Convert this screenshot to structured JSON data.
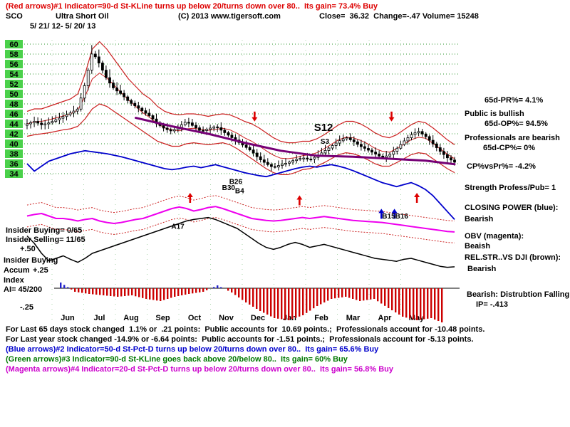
{
  "header": {
    "line1": "(Red arrows)#1 Indicator=90-d St-KLine turns up below 20/turns down over 80..  Its gain= 73.4% Buy",
    "symbol": "SCO",
    "name": "Ultra Short Oil",
    "copyright": "(C) 2013 www.tigersoft.com",
    "quote": "Close=  36.32  Change=-.47 Volume= 15248",
    "date_range": "5/ 21/ 12- 5/ 20/ 13"
  },
  "right_panel": {
    "pr": "65d-PR%= 4.1%",
    "public": "Public is bullish",
    "op": "65d-OP%= 94.5%",
    "professionals": "Professionals are bearish",
    "cp": "65d-CP%= 0%",
    "cpvspr": "CP%vsPr%= -4.2%",
    "strength": "Strength Profess/Pub= 1",
    "closing_power_title": "CLOSING POWER (blue):",
    "closing_power_status": "Bearish",
    "obv_title": "OBV (magenta):",
    "obv_status": "Beaish",
    "relstr_title": "REL.STR..VS DJI (brown):",
    "relstr_status": "Bearish",
    "verdict": "Bearish: Distrubtion Falling",
    "ip": "IP= -.413"
  },
  "left_panel": {
    "insider_buying": "Insider Buying= 0/65",
    "insider_selling": "Insider Selling= 11/65",
    "plus_50": "+.50",
    "accum_title1": "Insider Buying",
    "accum_title2": "Accum",
    "plus_25": "+.25",
    "accum_title3": "Index",
    "ai": "AI= 45/200",
    "minus_25": "-.25"
  },
  "footer": {
    "lines": [
      {
        "text": "For Last 65 days stock changed  1.1% or  .21 points:  Public accounts for  10.69 points.;  Professionals account for -10.48 points.",
        "color": "#000000"
      },
      {
        "text": "For Last year stock changed -14.9% or -6.64 points:  Public accounts for -1.51 points.;  Professionals account for -5.13 points.",
        "color": "#000000"
      },
      {
        "text": "(Blue arrows)#2 Indicator=50-d St-Pct-D turns up below 20/turns down over 80..  Its gain= 65.6% Buy",
        "color": "#0000cc"
      },
      {
        "text": "(Green arrows)#3 Indicator=90-d St-KLine goes back above 20/below 80..  Its gain= 60% Buy",
        "color": "#007700"
      },
      {
        "text": "(Magenta arrows)#4 Indicator=20-d St-Pct-D turns up below 20/turns down over 80..  Its gain= 56.8% Buy",
        "color": "#cc00cc"
      }
    ]
  },
  "chart_data": {
    "type": "candlestick",
    "symbol": "SCO",
    "title": "Ultra Short Oil",
    "date_range": "5/ 21/ 12- 5/ 20/ 13",
    "close": 36.32,
    "change": -0.47,
    "volume": 15248,
    "y_ticks": [
      60,
      58,
      56,
      54,
      52,
      50,
      48,
      46,
      44,
      42,
      40,
      38,
      36,
      34
    ],
    "months": [
      "Jun",
      "Jul",
      "Aug",
      "Sep",
      "Oct",
      "Nov",
      "Dec",
      "Jan",
      "Feb",
      "Mar",
      "Apr",
      "May"
    ],
    "price_axis_range": [
      34,
      60
    ],
    "obv_band_offset": 2.2,
    "colors": {
      "grid": "#118811",
      "tick_bg": "#4ad14a",
      "candle": "#000000",
      "bands": "#cc2222",
      "ma200": "#750075",
      "closing_power": "#0000cc",
      "obv": "#ee00ee",
      "rel_str": "#000000",
      "hist_neg": "#cc0000",
      "hist_pos": "#2222cc"
    },
    "series": {
      "close": [
        44,
        44.5,
        43.8,
        44.2,
        44.8,
        45.5,
        46.2,
        47,
        52,
        58.5,
        56,
        53,
        51,
        50,
        48.5,
        47.5,
        46.5,
        45.5,
        44,
        43,
        42.5,
        43.5,
        44.5,
        43.5,
        42.5,
        43,
        43.5,
        42.5,
        41.5,
        40.5,
        39.5,
        38.5,
        37,
        36,
        35.2,
        35.8,
        36.2,
        36.8,
        37.2,
        36.8,
        37.5,
        38.5,
        39.5,
        40.5,
        41.3,
        40.5,
        39.5,
        38.8,
        38,
        37.2,
        37.8,
        39,
        40.5,
        41.8,
        42.5,
        41.5,
        40,
        38.5,
        37.2,
        36.3
      ],
      "band_upper": [
        46.5,
        47,
        47,
        47.5,
        48,
        48.5,
        49,
        50,
        54,
        59,
        60.5,
        59,
        57,
        55,
        53,
        51.5,
        50,
        49,
        47.5,
        46.5,
        46,
        45.8,
        46,
        46,
        45.8,
        45.5,
        45.8,
        46,
        45.8,
        45.2,
        44.5,
        44,
        43.2,
        42.2,
        41.2,
        40.5,
        40.2,
        40.2,
        40.5,
        40.5,
        41,
        41.8,
        42.8,
        43.8,
        44.5,
        44.5,
        44,
        43.2,
        42.2,
        41.5,
        41.2,
        41.8,
        42.8,
        43.8,
        44.5,
        44.2,
        43.2,
        42,
        40.8,
        39.8
      ],
      "band_mid": [
        44,
        44.4,
        44.5,
        44.8,
        45.2,
        45.6,
        46,
        46.8,
        49.5,
        53,
        54.2,
        53.2,
        51.8,
        50.2,
        48.8,
        47.5,
        46.2,
        45.2,
        44,
        43.2,
        42.8,
        42.6,
        43,
        43.1,
        42.9,
        42.7,
        42.9,
        43.1,
        42.8,
        42.1,
        41.2,
        40.5,
        39.6,
        38.6,
        37.7,
        37.1,
        37,
        37.2,
        37.6,
        37.8,
        38.2,
        39,
        39.9,
        40.8,
        41.3,
        41.2,
        40.7,
        40,
        39.1,
        38.5,
        38.3,
        39,
        39.9,
        40.8,
        41.3,
        41.1,
        40.1,
        39,
        37.9,
        37
      ],
      "band_lower": [
        41.5,
        41.8,
        42,
        42.2,
        42.5,
        42.8,
        43,
        43.5,
        45,
        47,
        48,
        47.5,
        46.5,
        45.5,
        44.5,
        43.5,
        42.5,
        41.5,
        40.5,
        40,
        39.5,
        39.5,
        40,
        40.2,
        40,
        39.8,
        40,
        40.2,
        39.8,
        39,
        38,
        37,
        36,
        35,
        34.2,
        33.8,
        33.8,
        34.2,
        34.8,
        35,
        35.5,
        36.2,
        37,
        37.8,
        38.2,
        38,
        37.5,
        36.8,
        36,
        35.5,
        35.5,
        36.2,
        37,
        37.8,
        38.2,
        38,
        37,
        36,
        35,
        34.2
      ],
      "closing_power": [
        36,
        34.5,
        35.5,
        36.5,
        37,
        37.5,
        38,
        38.3,
        38.6,
        38.4,
        38.2,
        38,
        37.7,
        37.4,
        37,
        36.6,
        36.2,
        35.8,
        35.4,
        35,
        34.8,
        35,
        35.3,
        35.5,
        35.2,
        35.5,
        35.8,
        35.4,
        35,
        34.6,
        34.2,
        33.9,
        33.6,
        33.4,
        33.8,
        34.2,
        34.6,
        35,
        35.3,
        35.5,
        35.3,
        35.6,
        35.8,
        35.5,
        35.1,
        34.6,
        34,
        33.4,
        32.8,
        32.2,
        31.8,
        31.4,
        31.8,
        32.2,
        31.6,
        30.8,
        29.6,
        28,
        26.4,
        24.8
      ],
      "obv": [
        25.5,
        25.8,
        26,
        25.5,
        25,
        25,
        24.8,
        24.5,
        24.8,
        25,
        24.5,
        24.2,
        24,
        24.2,
        24.5,
        24.8,
        25,
        25.5,
        26,
        26.5,
        27,
        27.3,
        27,
        26.5,
        26.8,
        27.2,
        27.4,
        27,
        26.5,
        26,
        25.5,
        25,
        24.8,
        24.6,
        24.5,
        24.6,
        24.8,
        25,
        25.2,
        25,
        25.2,
        25.4,
        25.2,
        25,
        24.8,
        24.6,
        24.5,
        24.4,
        24.3,
        24.2,
        24,
        23.8,
        23.6,
        23.4,
        23.2,
        23,
        22.8,
        22.6,
        22.4,
        22.3
      ],
      "rel_str": [
        21.5,
        20,
        18,
        16.5,
        17,
        17.5,
        16.8,
        16.2,
        17,
        18,
        18.5,
        19,
        19.5,
        20,
        20.5,
        21,
        21.5,
        22,
        22.5,
        23,
        23.5,
        24,
        24.5,
        24.8,
        25,
        25.2,
        24.8,
        24.2,
        23.6,
        23,
        22,
        21,
        20,
        19.2,
        18.8,
        19.2,
        19.8,
        20.2,
        19.8,
        19.2,
        19.5,
        19.8,
        19.4,
        19,
        18.6,
        18.2,
        17.8,
        17.4,
        17,
        16.8,
        16.6,
        16.4,
        16.8,
        17,
        16.6,
        16.2,
        15.8,
        15.4,
        15.2,
        15.3
      ],
      "ma200": [
        [
          15,
          45.2
        ],
        [
          20,
          43.5
        ],
        [
          25,
          42
        ],
        [
          30,
          40.2
        ],
        [
          35,
          38.6
        ],
        [
          40,
          37.6
        ],
        [
          45,
          37.4
        ],
        [
          50,
          37
        ],
        [
          55,
          36.6
        ],
        [
          59,
          35.9
        ]
      ]
    },
    "annotations": [
      {
        "text": "S12",
        "i": 39.6,
        "p": 42.6,
        "color": "#000000",
        "size": 15
      },
      {
        "text": "S3",
        "i": 40.5,
        "p": 40.0,
        "color": "#000000",
        "size": 10
      },
      {
        "text": "B30",
        "i": 26.9,
        "p": 30.7,
        "color": "#000000",
        "size": 10
      },
      {
        "text": "B26",
        "i": 27.9,
        "p": 31.9,
        "color": "#000000",
        "size": 10
      },
      {
        "text": "B4",
        "i": 28.7,
        "p": 30.1,
        "color": "#000000",
        "size": 10
      },
      {
        "text": "A17",
        "i": 19.9,
        "p": 22.9,
        "color": "#000000",
        "size": 10
      },
      {
        "text": "B15",
        "i": 49.0,
        "p": 25.0,
        "color": "#000000",
        "size": 10
      },
      {
        "text": "B16",
        "i": 50.8,
        "p": 25.0,
        "color": "#000000",
        "size": 10
      }
    ],
    "arrows": [
      {
        "dir": "down",
        "color": "#dd0000",
        "i": 31.4,
        "p": 44.6
      },
      {
        "dir": "down",
        "color": "#dd0000",
        "i": 50.3,
        "p": 44.6
      },
      {
        "dir": "up",
        "color": "#dd0000",
        "i": 22.5,
        "p": 30.0
      },
      {
        "dir": "up",
        "color": "#dd0000",
        "i": 37.6,
        "p": 29.5
      },
      {
        "dir": "up",
        "color": "#dd0000",
        "i": 53.8,
        "p": 30.0
      },
      {
        "dir": "up",
        "color": "#0000cc",
        "i": 48.9,
        "p": 26.8
      },
      {
        "dir": "up",
        "color": "#0000cc",
        "i": 50.7,
        "p": 26.8
      }
    ],
    "accum_index": {
      "ai": "45/200",
      "scale_labels": [
        "+.50",
        "+.25",
        "-.25"
      ],
      "values": [
        0.08,
        -0.05,
        -0.08,
        -0.1,
        -0.12,
        -0.1,
        -0.15,
        -0.18,
        -0.12,
        -0.08,
        -0.05,
        0.04,
        -0.06,
        -0.2,
        -0.32,
        -0.42,
        -0.45,
        -0.38,
        -0.25,
        -0.15,
        -0.12,
        -0.18,
        -0.15,
        -0.28,
        -0.4,
        -0.45,
        -0.42,
        -0.5
      ]
    }
  }
}
